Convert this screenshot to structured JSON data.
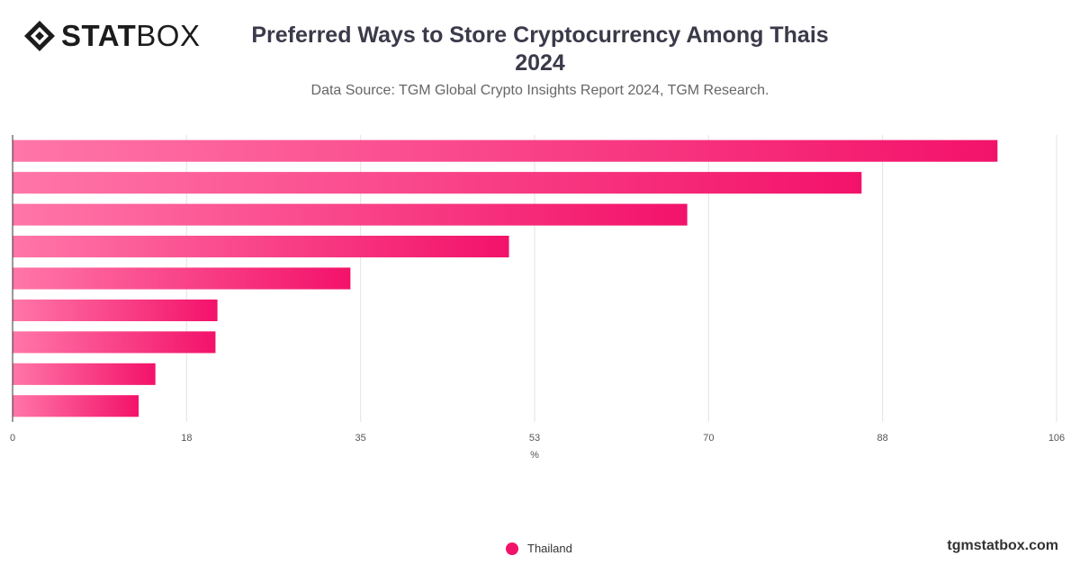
{
  "brand": {
    "bold": "STAT",
    "light": "BOX",
    "site": "tgmstatbox.com"
  },
  "chart_data": {
    "type": "bar",
    "orientation": "horizontal",
    "title": "Preferred Ways to Store Cryptocurrency Among Thais",
    "title_year": "2024",
    "subtitle": "Data Source: TGM Global Crypto Insights Report 2024, TGM Research.",
    "xlabel": "%",
    "xlim": [
      0,
      106
    ],
    "xticks": [
      "0",
      "18",
      "35",
      "53",
      "70",
      "88",
      "106"
    ],
    "categories": [
      "",
      "",
      "",
      "",
      "",
      "",
      "",
      "",
      ""
    ],
    "series": [
      {
        "name": "Thailand",
        "values": [
          100.0,
          86.2,
          68.5,
          50.4,
          34.3,
          20.8,
          20.6,
          14.5,
          12.8
        ]
      }
    ],
    "colors": {
      "bar_start": "#ff76a8",
      "bar_end": "#f3126a",
      "legend": "#f3126a"
    },
    "grid": true,
    "legend_position": "bottom"
  }
}
